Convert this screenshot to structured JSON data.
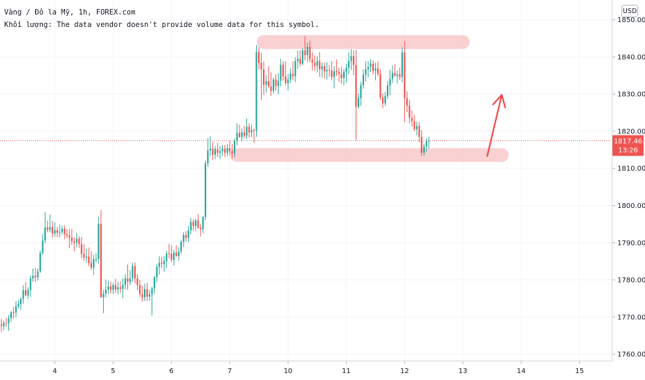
{
  "legend": {
    "symbol_line": "Vàng / Đô la Mỹ, 1h, FOREX.com",
    "volume_line": "Khối lượng: The data vendor doesn't provide volume data for this symbol."
  },
  "currency_button": "USD",
  "price_label": {
    "price": "1817.46",
    "countdown": "13:26"
  },
  "colors": {
    "up": "#26a69a",
    "down": "#ef5350",
    "highlight": "#f8c9cc",
    "arrow": "#f0484c",
    "grid": "#f0f3fa",
    "price_line": "#ef5350"
  },
  "chart_data": {
    "type": "candlestick",
    "ylim": [
      1757,
      1855
    ],
    "y_ticks": [
      1760,
      1770,
      1780,
      1790,
      1800,
      1810,
      1820,
      1830,
      1840,
      1850
    ],
    "y_tick_labels": [
      "1760.00",
      "1770.00",
      "1780.00",
      "1790.00",
      "1800.00",
      "1810.00",
      "1820.00",
      "1830.00",
      "1840.00",
      "1850.00"
    ],
    "x_ticks": [
      {
        "label": "4",
        "index": 22
      },
      {
        "label": "5",
        "index": 46
      },
      {
        "label": "6",
        "index": 70
      },
      {
        "label": "7",
        "index": 94
      },
      {
        "label": "10",
        "index": 118
      },
      {
        "label": "11",
        "index": 142
      },
      {
        "label": "12",
        "index": 166
      },
      {
        "label": "13",
        "index": 190
      },
      {
        "label": "14",
        "index": 214
      },
      {
        "label": "15",
        "index": 238
      }
    ],
    "current_price": 1817.46,
    "candles": [
      [
        1768,
        1769.5,
        1766,
        1767.6
      ],
      [
        1767.6,
        1769,
        1766.5,
        1768.4
      ],
      [
        1768.4,
        1769.7,
        1767.3,
        1768.3
      ],
      [
        1768.3,
        1770.5,
        1766.3,
        1769.6
      ],
      [
        1769.6,
        1771.6,
        1768.7,
        1771.3
      ],
      [
        1771.3,
        1772.7,
        1769.6,
        1771.2
      ],
      [
        1771.2,
        1774.3,
        1769.9,
        1772.9
      ],
      [
        1772.9,
        1774.5,
        1772.3,
        1773.5
      ],
      [
        1773.5,
        1775.2,
        1771.9,
        1774.9
      ],
      [
        1774.9,
        1778.5,
        1773.6,
        1777.2
      ],
      [
        1777.2,
        1779.4,
        1775.7,
        1775.8
      ],
      [
        1775.8,
        1778.1,
        1774.9,
        1777.3
      ],
      [
        1777.3,
        1781.1,
        1775.4,
        1780.4
      ],
      [
        1780.4,
        1783,
        1779.5,
        1781.1
      ],
      [
        1781.1,
        1783.2,
        1779.4,
        1780.7
      ],
      [
        1780.7,
        1783.1,
        1779.9,
        1782.3
      ],
      [
        1782.3,
        1787.9,
        1781.9,
        1787.2
      ],
      [
        1787.2,
        1792.3,
        1786.8,
        1790.6
      ],
      [
        1790.6,
        1798.2,
        1789.8,
        1794.1
      ],
      [
        1794.1,
        1795.9,
        1792.8,
        1793.5
      ],
      [
        1793.5,
        1797.6,
        1792.8,
        1794.2
      ],
      [
        1794.2,
        1795.8,
        1791.3,
        1792.5
      ],
      [
        1792.5,
        1795.5,
        1791.6,
        1793.4
      ],
      [
        1793.4,
        1794.3,
        1791.5,
        1792.7
      ],
      [
        1792.7,
        1794.9,
        1791.4,
        1792.9
      ],
      [
        1792.9,
        1794.6,
        1792.1,
        1793.8
      ],
      [
        1793.8,
        1794.7,
        1790.9,
        1792.3
      ],
      [
        1792.3,
        1793.6,
        1791.2,
        1792
      ],
      [
        1792,
        1793.8,
        1788.5,
        1791.4
      ],
      [
        1791.4,
        1793.7,
        1789.4,
        1790.4
      ],
      [
        1790.4,
        1791.4,
        1787.7,
        1790
      ],
      [
        1790,
        1792.6,
        1788.8,
        1791.1
      ],
      [
        1791.1,
        1791.8,
        1788.6,
        1789.6
      ],
      [
        1789.6,
        1791.5,
        1785.8,
        1787
      ],
      [
        1787,
        1789.6,
        1785.1,
        1786
      ],
      [
        1786,
        1788.4,
        1784.6,
        1786.3
      ],
      [
        1786.3,
        1788.7,
        1783.7,
        1784.5
      ],
      [
        1784.5,
        1787.7,
        1782.6,
        1783.3
      ],
      [
        1783.3,
        1786.8,
        1781.3,
        1785.5
      ],
      [
        1785.5,
        1787.2,
        1784.7,
        1785.6
      ],
      [
        1785.6,
        1797,
        1784.4,
        1795.1
      ],
      [
        1795.1,
        1798.8,
        1775.2,
        1775.3
      ],
      [
        1775.3,
        1777.3,
        1771,
        1776.3
      ],
      [
        1776.3,
        1780.1,
        1775.3,
        1777.4
      ],
      [
        1777.4,
        1779.8,
        1776.1,
        1778.2
      ],
      [
        1778.2,
        1779.5,
        1776.3,
        1777.3
      ],
      [
        1777.3,
        1779.2,
        1776.2,
        1778.6
      ],
      [
        1778.6,
        1780.3,
        1776.5,
        1777.4
      ],
      [
        1777.4,
        1779.5,
        1776.1,
        1778
      ],
      [
        1778,
        1779.6,
        1776.4,
        1777.6
      ],
      [
        1777.6,
        1780.4,
        1775.1,
        1778.6
      ],
      [
        1778.6,
        1781.6,
        1777.4,
        1780.4
      ],
      [
        1780.4,
        1784.1,
        1777.3,
        1779.5
      ],
      [
        1779.5,
        1782.6,
        1778.6,
        1780.4
      ],
      [
        1780.4,
        1784.6,
        1779.6,
        1783.7
      ],
      [
        1783.7,
        1784.7,
        1779.1,
        1780.4
      ],
      [
        1780.4,
        1781.6,
        1777.2,
        1778.6
      ],
      [
        1778.6,
        1780,
        1775.4,
        1776.2
      ],
      [
        1776.2,
        1778.4,
        1774.1,
        1775.3
      ],
      [
        1775.3,
        1779,
        1774.3,
        1777.5
      ],
      [
        1777.5,
        1779.2,
        1774.3,
        1775.5
      ],
      [
        1775.5,
        1777.3,
        1774.4,
        1776.1
      ],
      [
        1776.1,
        1778.2,
        1770.4,
        1777.7
      ],
      [
        1777.7,
        1781,
        1776.3,
        1780.7
      ],
      [
        1780.7,
        1784.3,
        1779.4,
        1783.5
      ],
      [
        1783.5,
        1786.4,
        1781.4,
        1784.6
      ],
      [
        1784.6,
        1786.2,
        1783.2,
        1784.3
      ],
      [
        1784.3,
        1786.4,
        1782.2,
        1785.1
      ],
      [
        1785.1,
        1787.8,
        1783.3,
        1787.1
      ],
      [
        1787.1,
        1789.7,
        1785.8,
        1787
      ],
      [
        1787,
        1789.3,
        1784.8,
        1785.4
      ],
      [
        1785.4,
        1788.1,
        1783.9,
        1787.3
      ],
      [
        1787.3,
        1789.3,
        1786.2,
        1786.4
      ],
      [
        1786.4,
        1788.8,
        1785.1,
        1787.6
      ],
      [
        1787.6,
        1790.8,
        1787,
        1790.2
      ],
      [
        1790.2,
        1792.9,
        1788.8,
        1792.1
      ],
      [
        1792.1,
        1793.1,
        1790.3,
        1791.3
      ],
      [
        1791.3,
        1794.5,
        1790.1,
        1793.3
      ],
      [
        1793.3,
        1796.7,
        1792.2,
        1795.6
      ],
      [
        1795.6,
        1796.3,
        1793.3,
        1794.5
      ],
      [
        1794.5,
        1796.4,
        1793.1,
        1796
      ],
      [
        1796,
        1797.7,
        1793.8,
        1794
      ],
      [
        1794,
        1795.1,
        1791.7,
        1793.6
      ],
      [
        1793.6,
        1797.2,
        1792.5,
        1796.9
      ],
      [
        1796.9,
        1812.1,
        1796.1,
        1811.4
      ],
      [
        1811.4,
        1818.2,
        1810.4,
        1814.8
      ],
      [
        1814.8,
        1818.6,
        1813.2,
        1815.3
      ],
      [
        1815.3,
        1817.1,
        1812.2,
        1813.7
      ],
      [
        1813.7,
        1816,
        1812.5,
        1815.2
      ],
      [
        1815.2,
        1816.9,
        1813,
        1814.2
      ],
      [
        1814.2,
        1816.1,
        1812.5,
        1814.6
      ],
      [
        1814.6,
        1816.3,
        1813.4,
        1815.3
      ],
      [
        1815.3,
        1816.3,
        1813,
        1814.2
      ],
      [
        1814.2,
        1816.5,
        1813.3,
        1815.5
      ],
      [
        1815.5,
        1817.4,
        1813.6,
        1814.6
      ],
      [
        1814.6,
        1816.6,
        1812.7,
        1814.1
      ],
      [
        1814.1,
        1818.1,
        1813,
        1817.4
      ],
      [
        1817.4,
        1822.1,
        1816.2,
        1819.6
      ],
      [
        1819.6,
        1821.8,
        1818.3,
        1818.4
      ],
      [
        1818.4,
        1820.8,
        1817.4,
        1819.7
      ],
      [
        1819.7,
        1821.4,
        1818.1,
        1818.8
      ],
      [
        1818.8,
        1823.4,
        1817.9,
        1821.2
      ],
      [
        1821.2,
        1822.2,
        1818.3,
        1819.7
      ],
      [
        1819.7,
        1821.8,
        1818.4,
        1820.3
      ],
      [
        1820.3,
        1820.7,
        1816.8,
        1820.2
      ],
      [
        1820.2,
        1843.2,
        1818.5,
        1841.3
      ],
      [
        1841.3,
        1842.7,
        1836.7,
        1838.4
      ],
      [
        1838.4,
        1841,
        1828.4,
        1836.6
      ],
      [
        1836.6,
        1838.8,
        1829.8,
        1832.5
      ],
      [
        1832.5,
        1835.1,
        1830.4,
        1833.5
      ],
      [
        1833.5,
        1837.5,
        1831.7,
        1832.1
      ],
      [
        1832.1,
        1835.8,
        1829.5,
        1830.9
      ],
      [
        1830.9,
        1834.5,
        1830.1,
        1833.9
      ],
      [
        1833.9,
        1835.3,
        1830.9,
        1832.2
      ],
      [
        1832.2,
        1835.6,
        1830,
        1833.6
      ],
      [
        1833.6,
        1839.5,
        1832.1,
        1837.9
      ],
      [
        1837.9,
        1838.8,
        1833.6,
        1834.7
      ],
      [
        1834.7,
        1838.8,
        1832.3,
        1832.9
      ],
      [
        1832.9,
        1835.4,
        1831,
        1833.9
      ],
      [
        1833.9,
        1836.9,
        1833,
        1835.5
      ],
      [
        1835.5,
        1838.8,
        1833.7,
        1834.8
      ],
      [
        1834.8,
        1839.9,
        1833.2,
        1838.9
      ],
      [
        1838.9,
        1841.7,
        1836.8,
        1839.5
      ],
      [
        1839.5,
        1841.8,
        1837.4,
        1838.2
      ],
      [
        1838.2,
        1842.4,
        1837.7,
        1841.8
      ],
      [
        1841.8,
        1845.6,
        1839.1,
        1840.5
      ],
      [
        1840.5,
        1843.8,
        1838.6,
        1842.7
      ],
      [
        1842.7,
        1844.4,
        1838.5,
        1839.3
      ],
      [
        1839.3,
        1841.2,
        1836.3,
        1838.4
      ],
      [
        1838.4,
        1840.4,
        1836.3,
        1837.6
      ],
      [
        1837.6,
        1840.2,
        1835.8,
        1838.9
      ],
      [
        1838.9,
        1841.3,
        1834.6,
        1836.7
      ],
      [
        1836.7,
        1838.5,
        1834.4,
        1837.5
      ],
      [
        1837.5,
        1838.6,
        1834.2,
        1836.1
      ],
      [
        1836.1,
        1838.6,
        1833.9,
        1836.5
      ],
      [
        1836.5,
        1837.8,
        1834.6,
        1836.3
      ],
      [
        1836.3,
        1838.9,
        1833.7,
        1834.6
      ],
      [
        1834.6,
        1837.5,
        1831.5,
        1836.2
      ],
      [
        1836.2,
        1839.3,
        1834.8,
        1835.9
      ],
      [
        1835.9,
        1837.1,
        1833.3,
        1835.4
      ],
      [
        1835.4,
        1837.4,
        1832.8,
        1834.3
      ],
      [
        1834.3,
        1836.8,
        1832.4,
        1836
      ],
      [
        1836,
        1838.2,
        1833.1,
        1837.1
      ],
      [
        1837.1,
        1841.3,
        1835.3,
        1838.9
      ],
      [
        1838.9,
        1842.1,
        1836.5,
        1840.2
      ],
      [
        1840.2,
        1841.8,
        1835.1,
        1837.8
      ],
      [
        1837.8,
        1841.9,
        1817.5,
        1826.6
      ],
      [
        1826.6,
        1830.2,
        1826.1,
        1828.9
      ],
      [
        1828.9,
        1833.3,
        1826.8,
        1832.4
      ],
      [
        1832.4,
        1836.6,
        1831.4,
        1835.2
      ],
      [
        1835.2,
        1838.8,
        1833.4,
        1836.7
      ],
      [
        1836.7,
        1838.9,
        1834.5,
        1837.3
      ],
      [
        1837.3,
        1839.4,
        1835.9,
        1838.2
      ],
      [
        1838.2,
        1839.1,
        1835.3,
        1836.3
      ],
      [
        1836.3,
        1838.5,
        1833.7,
        1836.9
      ],
      [
        1836.9,
        1838.7,
        1834.8,
        1835.4
      ],
      [
        1835.4,
        1836.6,
        1828.4,
        1829.1
      ],
      [
        1829.1,
        1830.2,
        1826.2,
        1827.5
      ],
      [
        1827.5,
        1830.6,
        1826.8,
        1829.5
      ],
      [
        1829.5,
        1833.5,
        1828.7,
        1832.3
      ],
      [
        1832.3,
        1836.6,
        1829.7,
        1834.1
      ],
      [
        1834.1,
        1837.7,
        1833,
        1835.7
      ],
      [
        1835.7,
        1838,
        1834.6,
        1834.9
      ],
      [
        1834.9,
        1836.4,
        1832.8,
        1835.3
      ],
      [
        1835.3,
        1837.1,
        1833.8,
        1834.6
      ],
      [
        1834.6,
        1842.6,
        1833.2,
        1841.2
      ],
      [
        1841.2,
        1844.3,
        1822.5,
        1828.9
      ],
      [
        1828.9,
        1830.7,
        1825.1,
        1826.9
      ],
      [
        1826.9,
        1828.4,
        1822.1,
        1823.6
      ],
      [
        1823.6,
        1825.6,
        1821.3,
        1822.7
      ],
      [
        1822.7,
        1824.4,
        1820,
        1820.6
      ],
      [
        1820.6,
        1822.6,
        1818.9,
        1821.4
      ],
      [
        1821.4,
        1822.5,
        1817,
        1818.5
      ],
      [
        1818.5,
        1820.3,
        1813.4,
        1814.2
      ],
      [
        1814.2,
        1816.7,
        1813.4,
        1815.9
      ],
      [
        1815.9,
        1818.2,
        1814.5,
        1817.3
      ],
      [
        1817.3,
        1818.5,
        1815.4,
        1817.46
      ]
    ],
    "annotations": [
      {
        "type": "highlight",
        "label": "resistance-zone",
        "x_index": [
          108,
          190
        ],
        "y": 1844
      },
      {
        "type": "highlight",
        "label": "support-zone",
        "x_index": [
          97,
          206
        ],
        "y": 1813.6
      },
      {
        "type": "arrow",
        "label": "up-arrow",
        "from_index": [
          200,
          1813.3
        ],
        "to_index": [
          206,
          1829.8
        ]
      }
    ]
  }
}
